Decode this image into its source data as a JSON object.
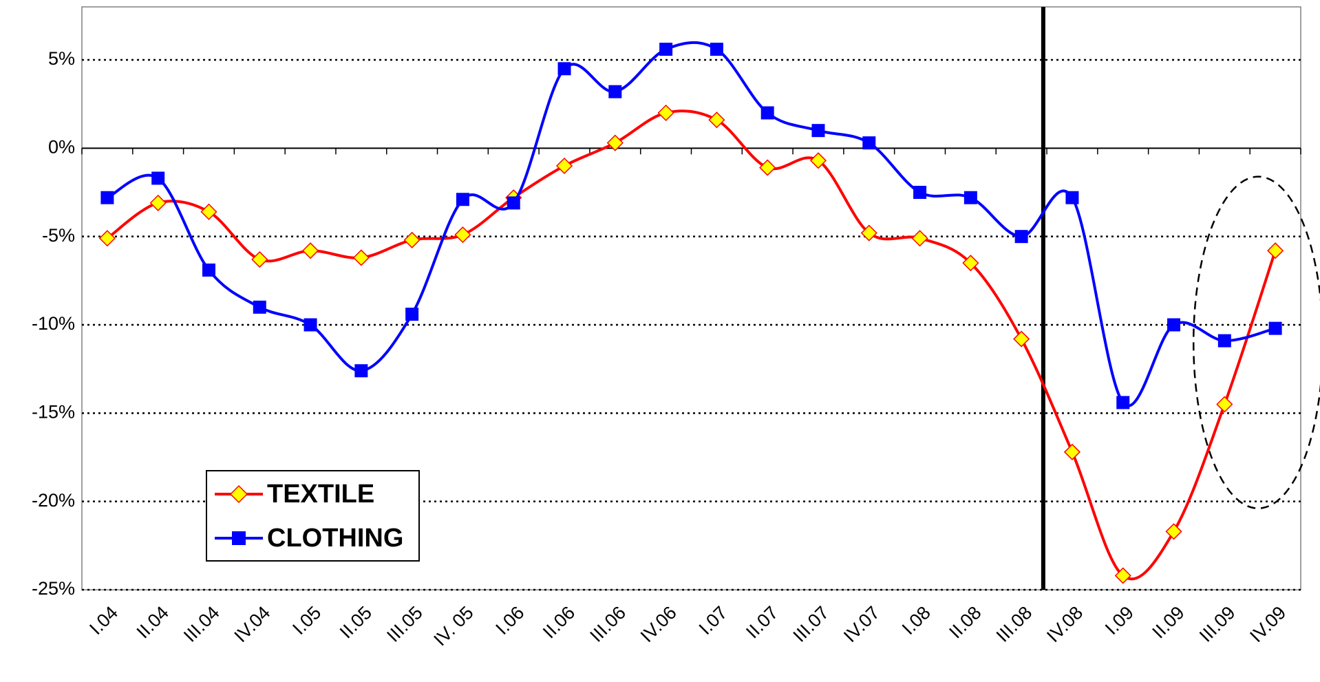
{
  "chart_data": {
    "type": "line",
    "categories": [
      "I.04",
      "II.04",
      "III.04",
      "IV.04",
      "I.05",
      "II.05",
      "III.05",
      "IV. 05",
      "I.06",
      "II.06",
      "III.06",
      "IV.06",
      "I.07",
      "II.07",
      "III.07",
      "IV.07",
      "I.08",
      "II.08",
      "III.08",
      "IV.08",
      "I.09",
      "II.09",
      "III.09",
      "IV.09"
    ],
    "series": [
      {
        "name": "TEXTILE",
        "color": "#ff0000",
        "marker": "diamond",
        "marker_color": "#ffff00",
        "values": [
          -5.1,
          -3.1,
          -3.6,
          -6.3,
          -5.8,
          -6.2,
          -5.2,
          -4.9,
          -2.8,
          -1.0,
          0.3,
          2.0,
          1.6,
          -1.1,
          -0.7,
          -4.8,
          -5.1,
          -6.5,
          -10.8,
          -17.2,
          -24.2,
          -21.7,
          -14.5,
          -5.8
        ]
      },
      {
        "name": "CLOTHING",
        "color": "#0000ff",
        "marker": "square",
        "marker_color": "#0000ff",
        "values": [
          -2.8,
          -1.7,
          -6.9,
          -9.0,
          -10.0,
          -12.6,
          -9.4,
          -2.9,
          -3.1,
          4.5,
          3.2,
          5.6,
          5.6,
          2.0,
          1.0,
          0.3,
          -2.5,
          -2.8,
          -5.0,
          -2.8,
          -14.4,
          -10.0,
          -10.9,
          -10.2
        ]
      }
    ],
    "ylim": [
      -25,
      8
    ],
    "yticks": [
      {
        "value": 5,
        "label": "5%"
      },
      {
        "value": 0,
        "label": "0%"
      },
      {
        "value": -5,
        "label": "-5%"
      },
      {
        "value": -10,
        "label": "-10%"
      },
      {
        "value": -15,
        "label": "-15%"
      },
      {
        "value": -20,
        "label": "-20%"
      },
      {
        "value": -25,
        "label": "-25%"
      }
    ],
    "grid": true
  }
}
